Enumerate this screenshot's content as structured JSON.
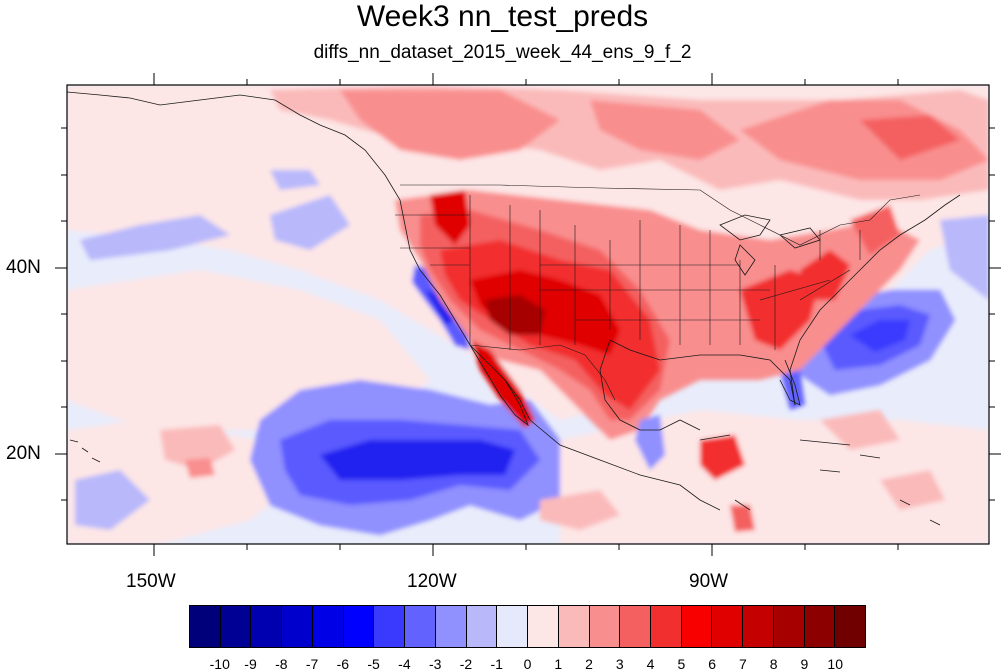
{
  "figure": {
    "title": "Week3 nn_test_preds",
    "subtitle": "diffs_nn_dataset_2015_week_44_ens_9_f_2"
  },
  "map": {
    "projection": "cylindrical-equidistant",
    "lon_range": [
      -160,
      -62
    ],
    "lat_range": [
      11,
      60
    ],
    "lon_ticks": [
      "150W",
      "120W",
      "90W"
    ],
    "lat_ticks": [
      "40N",
      "20N"
    ],
    "field_summary": {
      "background": "#e9ecfb",
      "warm_anomaly_regions": [
        "western United States",
        "southern Plains",
        "southeastern United States",
        "eastern Canada",
        "Gulf of Alaska coast"
      ],
      "cold_anomaly_regions": [
        "eastern Pacific southwest of Baja California",
        "western Atlantic off Carolinas",
        "southern California coast",
        "central North Pacific"
      ]
    }
  },
  "colorbar": {
    "labels": [
      "-10",
      "-9",
      "-8",
      "-7",
      "-6",
      "-5",
      "-4",
      "-3",
      "-2",
      "-1",
      "0",
      "1",
      "2",
      "3",
      "4",
      "5",
      "6",
      "7",
      "8",
      "9",
      "10"
    ],
    "colors": [
      "#00007a",
      "#000095",
      "#0000b0",
      "#0000cc",
      "#0000e6",
      "#0000ff",
      "#3a3aff",
      "#6262ff",
      "#9090ff",
      "#b8b8fb",
      "#e6e8fb",
      "#fde6e6",
      "#fbbaba",
      "#f98e8e",
      "#f46060",
      "#f22f2f",
      "#f90000",
      "#e00000",
      "#c40000",
      "#a60000",
      "#8c0000",
      "#700000"
    ]
  }
}
